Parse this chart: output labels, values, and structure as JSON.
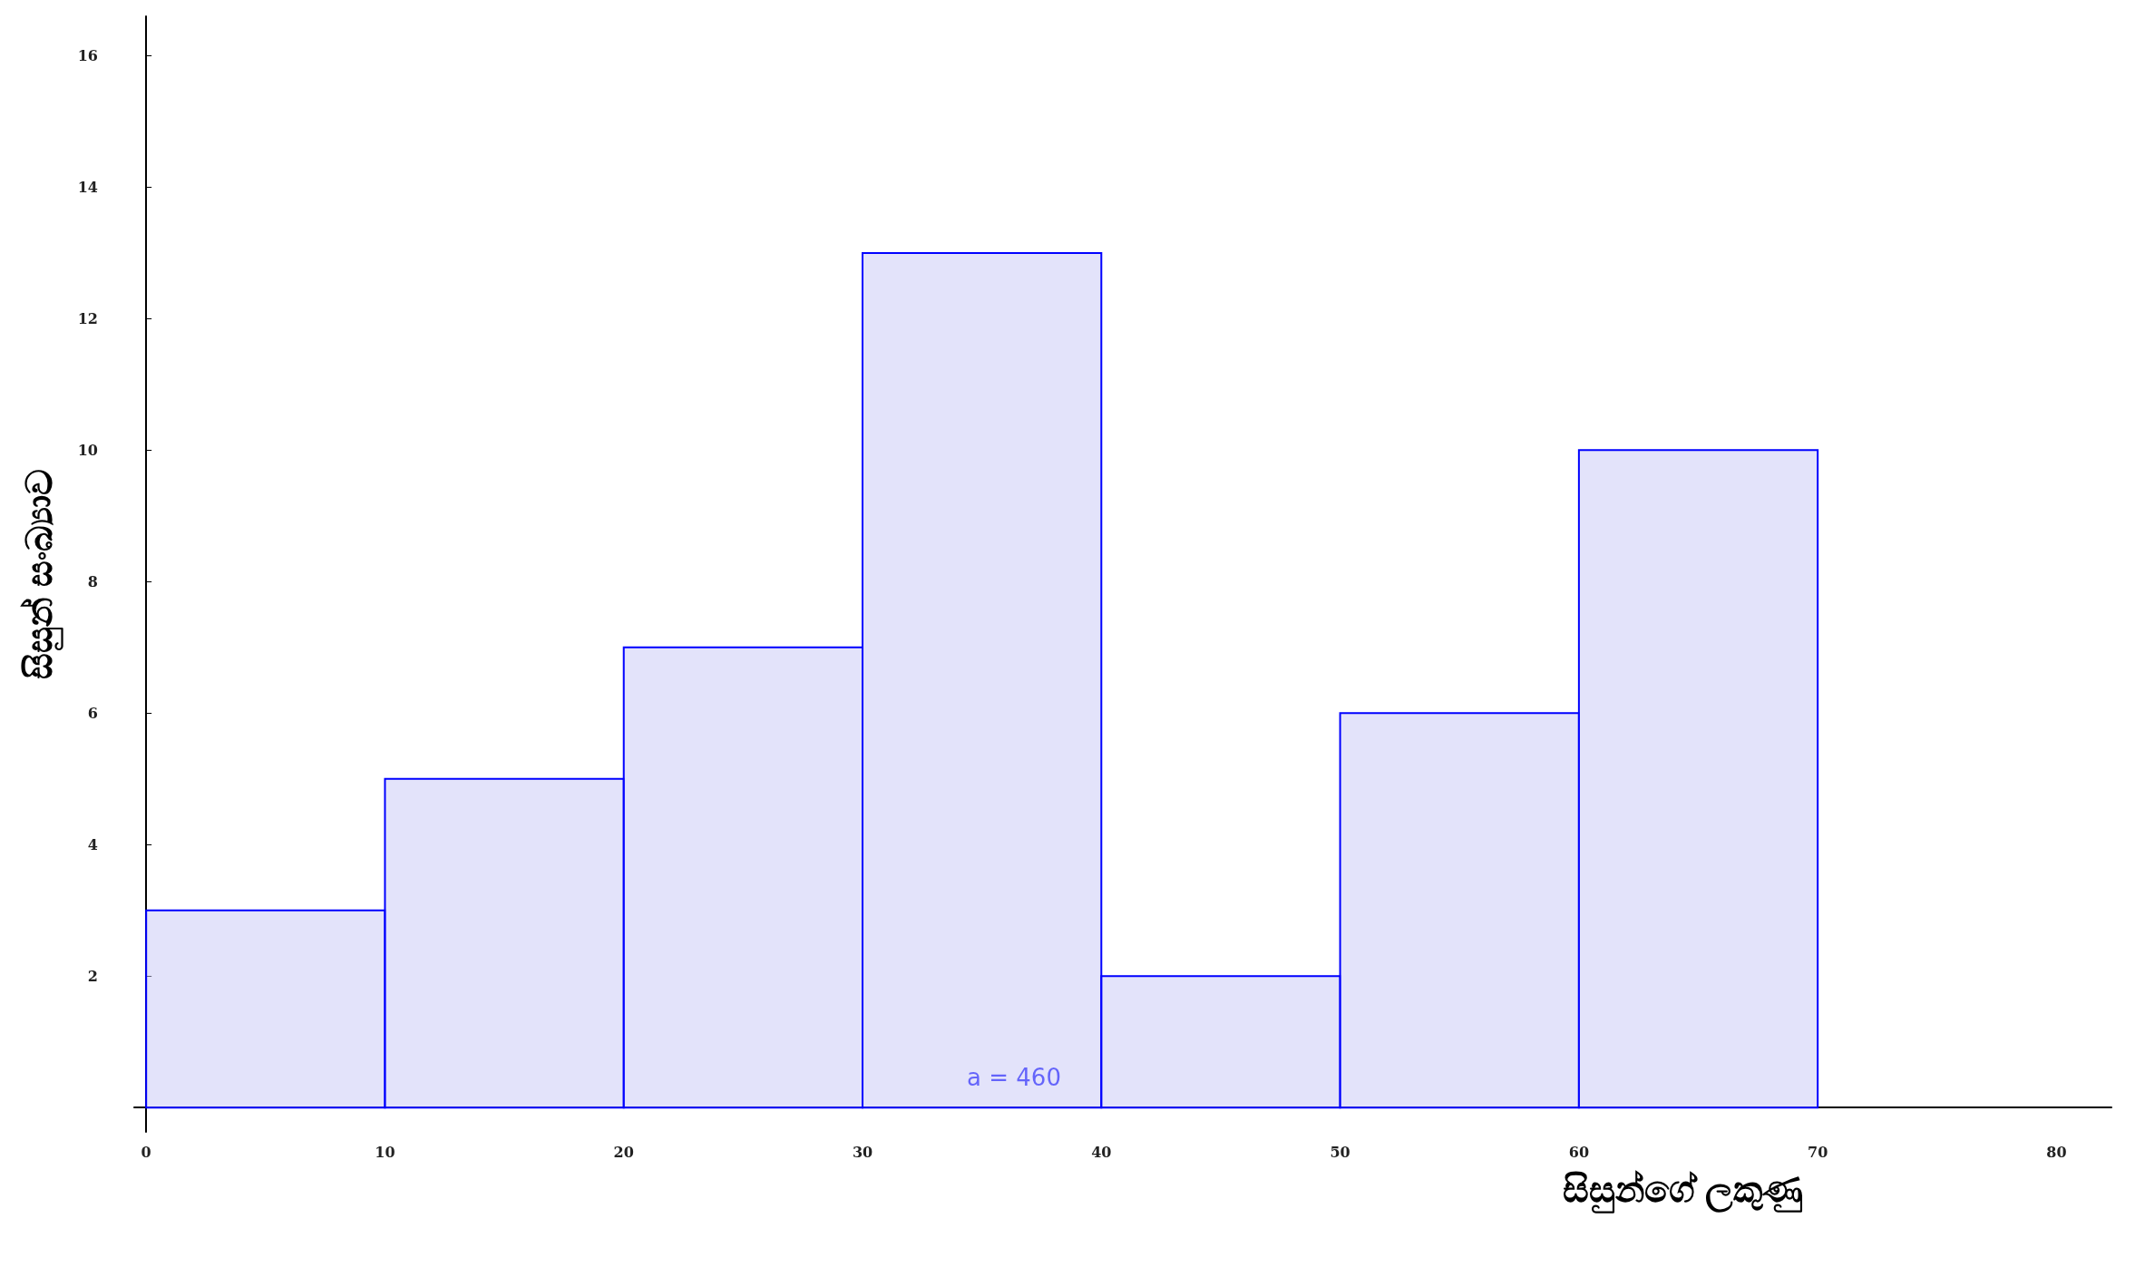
{
  "chart_data": {
    "type": "histogram",
    "xlabel": "සිසුන්ගේ ලකුණු",
    "ylabel": "සිසුන් සංඛ්‍යාව",
    "bins": [
      0,
      10,
      20,
      30,
      40,
      50,
      60,
      70
    ],
    "values": [
      3,
      5,
      7,
      13,
      2,
      6,
      10
    ],
    "color": "#0000ff",
    "xlim": [
      -0.5,
      82.3
    ],
    "ylim": [
      -0.37,
      16.6
    ],
    "xticks": [
      0,
      10,
      20,
      30,
      40,
      50,
      60,
      70,
      80
    ],
    "yticks": [
      2,
      4,
      6,
      8,
      10,
      12,
      14,
      16
    ],
    "annotations": [
      "a = 460"
    ]
  }
}
